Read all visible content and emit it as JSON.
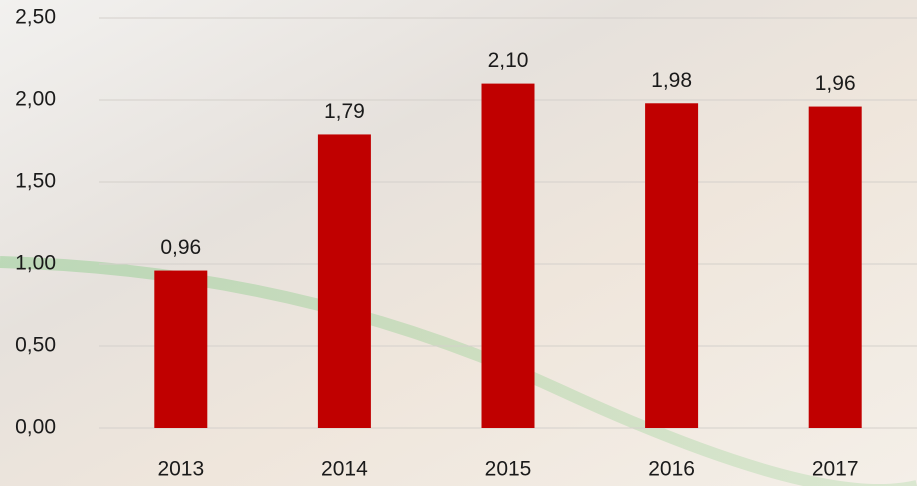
{
  "chart_data": {
    "type": "bar",
    "categories": [
      "2013",
      "2014",
      "2015",
      "2016",
      "2017"
    ],
    "values": [
      0.96,
      1.79,
      2.1,
      1.98,
      1.96
    ],
    "value_labels": [
      "0,96",
      "1,79",
      "2,10",
      "1,98",
      "1,96"
    ],
    "color": "#c00000",
    "ylim": [
      0,
      2.5
    ],
    "yticks": [
      {
        "value": 0,
        "label": "0,00"
      },
      {
        "value": 0.5,
        "label": "0,50"
      },
      {
        "value": 1,
        "label": "1,00"
      },
      {
        "value": 1.5,
        "label": "1,50"
      },
      {
        "value": 2,
        "label": "2,00"
      },
      {
        "value": 2.5,
        "label": "2,50"
      }
    ],
    "grid": true
  }
}
